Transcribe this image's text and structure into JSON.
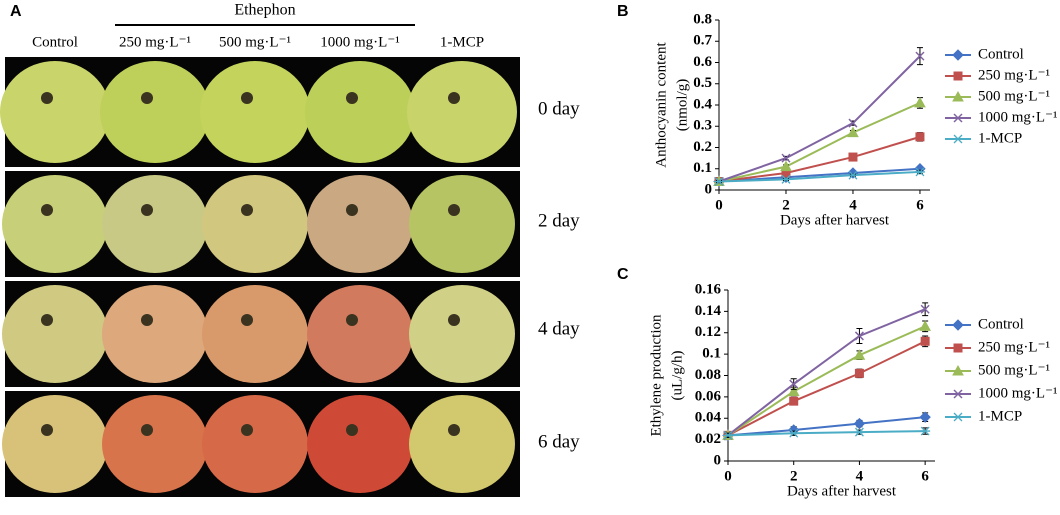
{
  "panel_a": {
    "label": "A",
    "group_label": "Ethephon",
    "columns": [
      "Control",
      "250 mg·L⁻¹",
      "500 mg·L⁻¹",
      "1000 mg·L⁻¹",
      "1-MCP"
    ],
    "rows": [
      "0  day",
      "2  day",
      "4  day",
      "6  day"
    ]
  },
  "chart_data": [
    {
      "type": "line",
      "label": "B",
      "ylabel": [
        "Anthocyanin content",
        "(nmol/g)"
      ],
      "xlabel": "Days  after  harvest",
      "x": [
        0,
        2,
        4,
        6
      ],
      "xlim": [
        0,
        6.3
      ],
      "xticks": [
        0,
        2,
        4,
        6
      ],
      "ylim": [
        0,
        0.8
      ],
      "yticks": [
        0,
        0.1,
        0.2,
        0.3,
        0.4,
        0.5,
        0.6,
        0.7,
        0.8
      ],
      "series": [
        {
          "name": "Control",
          "color": "#4472c4",
          "marker": "diamond",
          "values": [
            0.04,
            0.06,
            0.08,
            0.1
          ],
          "errors": [
            0.005,
            0.005,
            0.008,
            0.01
          ]
        },
        {
          "name": "250 mg·L⁻¹",
          "color": "#c0504d",
          "marker": "square",
          "values": [
            0.04,
            0.08,
            0.155,
            0.25
          ],
          "errors": [
            0.005,
            0.008,
            0.01,
            0.02
          ]
        },
        {
          "name": "500 mg·L⁻¹",
          "color": "#9bbb59",
          "marker": "triangle",
          "values": [
            0.04,
            0.11,
            0.27,
            0.41
          ],
          "errors": [
            0.005,
            0.008,
            0.01,
            0.025
          ]
        },
        {
          "name": "1000 mg·L⁻¹",
          "color": "#8064a2",
          "marker": "x",
          "values": [
            0.04,
            0.15,
            0.315,
            0.63
          ],
          "errors": [
            0.005,
            0.008,
            0.01,
            0.04
          ]
        },
        {
          "name": "1-MCP",
          "color": "#4bacc6",
          "marker": "asterisk",
          "values": [
            0.04,
            0.05,
            0.07,
            0.085
          ],
          "errors": [
            0.005,
            0.005,
            0.005,
            0.008
          ]
        }
      ]
    },
    {
      "type": "line",
      "label": "C",
      "ylabel": [
        "Ethylene production",
        "(uL/g/h)"
      ],
      "xlabel": "Days  after  harvest",
      "x": [
        0,
        2,
        4,
        6
      ],
      "xlim": [
        0,
        6.3
      ],
      "xticks": [
        0,
        2,
        4,
        6
      ],
      "ylim": [
        0,
        0.16
      ],
      "yticks": [
        0,
        0.02,
        0.04,
        0.06,
        0.08,
        0.1,
        0.12,
        0.14,
        0.16
      ],
      "series": [
        {
          "name": "Control",
          "color": "#4472c4",
          "marker": "diamond",
          "values": [
            0.024,
            0.029,
            0.035,
            0.041
          ],
          "errors": [
            0.002,
            0.003,
            0.003,
            0.004
          ]
        },
        {
          "name": "250 mg·L⁻¹",
          "color": "#c0504d",
          "marker": "square",
          "values": [
            0.024,
            0.056,
            0.082,
            0.112
          ],
          "errors": [
            0.002,
            0.003,
            0.004,
            0.005
          ]
        },
        {
          "name": "500 mg·L⁻¹",
          "color": "#9bbb59",
          "marker": "triangle",
          "values": [
            0.024,
            0.065,
            0.099,
            0.126
          ],
          "errors": [
            0.002,
            0.004,
            0.004,
            0.005
          ]
        },
        {
          "name": "1000 mg·L⁻¹",
          "color": "#8064a2",
          "marker": "x",
          "values": [
            0.024,
            0.072,
            0.117,
            0.142
          ],
          "errors": [
            0.002,
            0.005,
            0.007,
            0.006
          ]
        },
        {
          "name": "1-MCP",
          "color": "#4bacc6",
          "marker": "asterisk",
          "values": [
            0.024,
            0.026,
            0.027,
            0.028
          ],
          "errors": [
            0.002,
            0.002,
            0.002,
            0.003
          ]
        }
      ]
    }
  ]
}
